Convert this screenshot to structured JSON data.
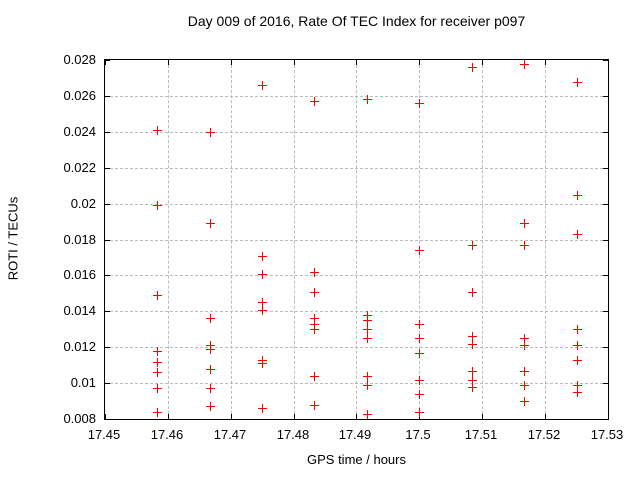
{
  "title": "Day 009 of 2016, Rate Of TEC Index for receiver p097",
  "chart_data": {
    "type": "scatter",
    "title": "Day 009 of 2016, Rate Of TEC Index for receiver p097",
    "xlabel": "GPS time / hours",
    "ylabel": "ROTI / TECUs",
    "xlim": [
      17.45,
      17.53
    ],
    "ylim": [
      0.008,
      0.028
    ],
    "x_ticks": [
      17.45,
      17.46,
      17.47,
      17.48,
      17.49,
      17.5,
      17.51,
      17.52,
      17.53
    ],
    "x_tick_labels": [
      "17.45",
      "17.46",
      "17.47",
      "17.48",
      "17.49",
      "17.5",
      "17.51",
      "17.52",
      "17.53"
    ],
    "y_ticks": [
      0.008,
      0.01,
      0.012,
      0.014,
      0.016,
      0.018,
      0.02,
      0.022,
      0.024,
      0.026,
      0.028
    ],
    "y_tick_labels": [
      "0.008",
      "0.01",
      "0.012",
      "0.014",
      "0.016",
      "0.018",
      "0.02",
      "0.022",
      "0.024",
      "0.026",
      "0.028"
    ],
    "grid": true,
    "legend": "none",
    "marker": {
      "shape": "plus",
      "color": "#ff0000",
      "size": 9
    },
    "grid_color": "#bbbbbb",
    "axis_color": "#000000",
    "background_color": "#ffffff",
    "series": [
      {
        "name": "ROTI",
        "points": [
          [
            17.4583,
            0.0241
          ],
          [
            17.4583,
            0.0199
          ],
          [
            17.4583,
            0.0149
          ],
          [
            17.4583,
            0.0118
          ],
          [
            17.4583,
            0.0112
          ],
          [
            17.4583,
            0.0106
          ],
          [
            17.4583,
            0.0097
          ],
          [
            17.4583,
            0.0084
          ],
          [
            17.4667,
            0.024
          ],
          [
            17.4667,
            0.0189
          ],
          [
            17.4667,
            0.0136
          ],
          [
            17.4667,
            0.0121
          ],
          [
            17.4667,
            0.0119
          ],
          [
            17.4667,
            0.0108
          ],
          [
            17.4667,
            0.0097
          ],
          [
            17.4667,
            0.0087
          ],
          [
            17.475,
            0.0266
          ],
          [
            17.475,
            0.0171
          ],
          [
            17.475,
            0.0161
          ],
          [
            17.475,
            0.0145
          ],
          [
            17.475,
            0.0141
          ],
          [
            17.475,
            0.0113
          ],
          [
            17.475,
            0.0111
          ],
          [
            17.475,
            0.0086
          ],
          [
            17.4833,
            0.0257
          ],
          [
            17.4833,
            0.0162
          ],
          [
            17.4833,
            0.0151
          ],
          [
            17.4833,
            0.0136
          ],
          [
            17.4833,
            0.0133
          ],
          [
            17.4833,
            0.013
          ],
          [
            17.4833,
            0.0104
          ],
          [
            17.4833,
            0.0088
          ],
          [
            17.4917,
            0.0258
          ],
          [
            17.4917,
            0.0138
          ],
          [
            17.4917,
            0.0135
          ],
          [
            17.4917,
            0.013
          ],
          [
            17.4917,
            0.0125
          ],
          [
            17.4917,
            0.0104
          ],
          [
            17.4917,
            0.0099
          ],
          [
            17.4917,
            0.0083
          ],
          [
            17.5,
            0.0256
          ],
          [
            17.5,
            0.0174
          ],
          [
            17.5,
            0.0133
          ],
          [
            17.5,
            0.0125
          ],
          [
            17.5,
            0.0117
          ],
          [
            17.5,
            0.0102
          ],
          [
            17.5,
            0.0094
          ],
          [
            17.5,
            0.0084
          ],
          [
            17.5083,
            0.0276
          ],
          [
            17.5083,
            0.0177
          ],
          [
            17.5083,
            0.0151
          ],
          [
            17.5083,
            0.0126
          ],
          [
            17.5083,
            0.0122
          ],
          [
            17.5083,
            0.0107
          ],
          [
            17.5083,
            0.0102
          ],
          [
            17.5083,
            0.0098
          ],
          [
            17.5167,
            0.0278
          ],
          [
            17.5167,
            0.0189
          ],
          [
            17.5167,
            0.0177
          ],
          [
            17.5167,
            0.0125
          ],
          [
            17.5167,
            0.0121
          ],
          [
            17.5167,
            0.0107
          ],
          [
            17.5167,
            0.0099
          ],
          [
            17.5167,
            0.009
          ],
          [
            17.525,
            0.0268
          ],
          [
            17.525,
            0.0205
          ],
          [
            17.525,
            0.0183
          ],
          [
            17.525,
            0.013
          ],
          [
            17.525,
            0.0121
          ],
          [
            17.525,
            0.0113
          ],
          [
            17.525,
            0.0099
          ],
          [
            17.525,
            0.0095
          ]
        ]
      }
    ]
  }
}
